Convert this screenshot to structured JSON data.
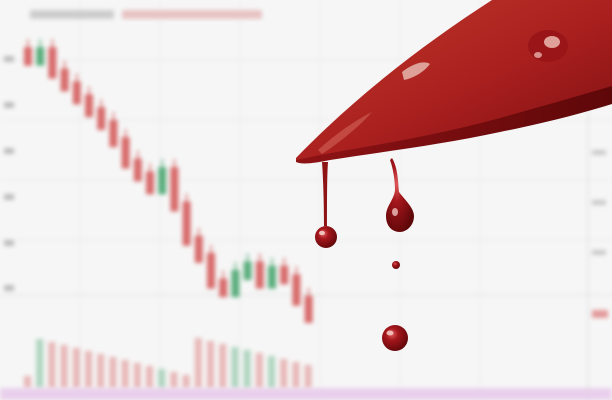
{
  "scene": {
    "subject": "bloody-knife-over-falling-price-chart",
    "colors": {
      "background": "#f6f6f6",
      "grid": "#e9e9e9",
      "candle_up": "#5cae7e",
      "candle_down": "#d86b6b",
      "blood_dark": "#7e0f12",
      "blood": "#a3161b",
      "blood_light": "#c4262b",
      "band": "#e7c9ea"
    }
  },
  "chart_data": {
    "type": "candlestick",
    "trend": "falling",
    "values": [
      64,
      66,
      61,
      58,
      55,
      52,
      49,
      45,
      40,
      37,
      34,
      38,
      30,
      22,
      18,
      12,
      10,
      14,
      16,
      12,
      15,
      13,
      8,
      4
    ]
  }
}
